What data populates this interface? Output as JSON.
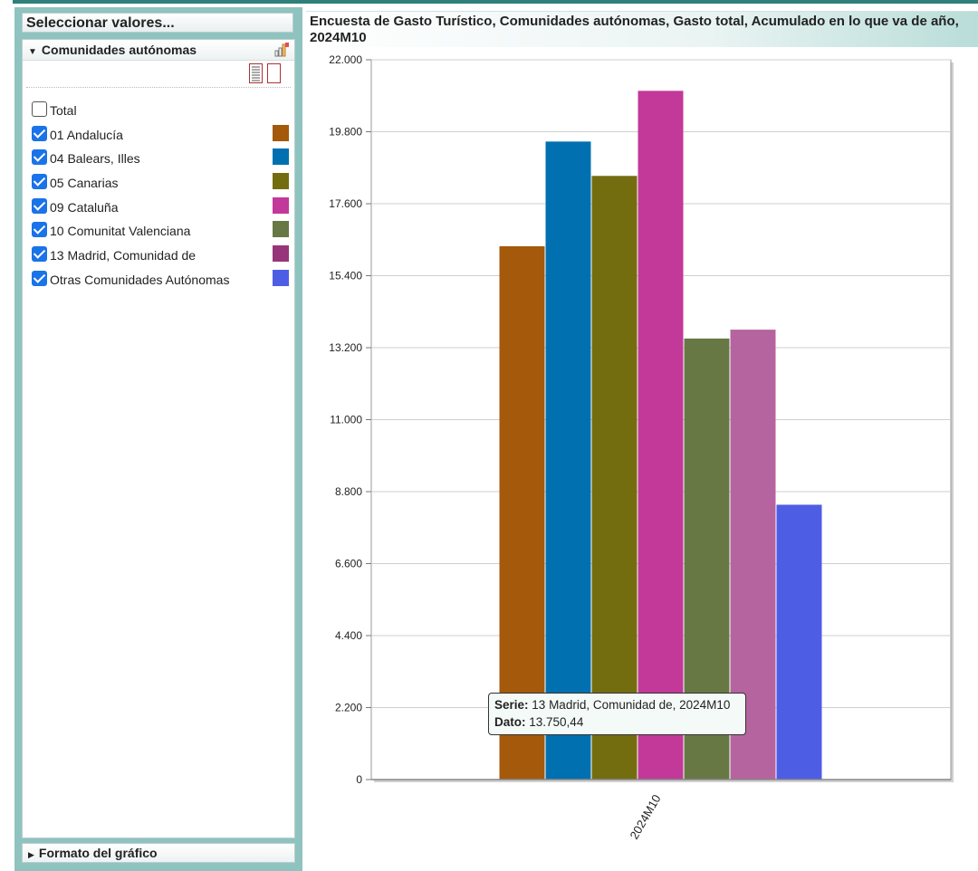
{
  "left": {
    "select_header": "Seleccionar valores...",
    "dimension_title": "Comunidades autónomas",
    "format_label": "Formato del gráfico",
    "options": [
      {
        "label": "Total",
        "checked": false,
        "color": null
      },
      {
        "label": "01 Andalucía",
        "checked": true,
        "color": "#A4590B"
      },
      {
        "label": "04 Balears, Illes",
        "checked": true,
        "color": "#0070B0"
      },
      {
        "label": "05 Canarias",
        "checked": true,
        "color": "#746D10"
      },
      {
        "label": "09 Cataluña",
        "checked": true,
        "color": "#C2399A"
      },
      {
        "label": "10 Comunitat Valenciana",
        "checked": true,
        "color": "#677845"
      },
      {
        "label": "13 Madrid, Comunidad de",
        "checked": true,
        "color": "#97357A"
      },
      {
        "label": "Otras Comunidades Autónomas",
        "checked": true,
        "color": "#4D5EE5"
      }
    ]
  },
  "chart": {
    "title": "Encuesta de Gasto Turístico, Comunidades autónomas, Gasto total, Acumulado en lo que va de año, 2024M10"
  },
  "tooltip": {
    "serie_label": "Serie:",
    "serie_value": "13 Madrid, Comunidad de, 2024M10",
    "dato_label": "Dato:",
    "dato_value": "13.750,44"
  },
  "chart_data": {
    "type": "bar",
    "categories": [
      "2024M10"
    ],
    "ylim": [
      0,
      22000
    ],
    "yticks": [
      0,
      2200,
      4400,
      6600,
      8800,
      11000,
      13200,
      15400,
      17600,
      19800,
      22000
    ],
    "ytick_labels": [
      "0",
      "2.200",
      "4.400",
      "6.600",
      "8.800",
      "11.000",
      "13.200",
      "15.400",
      "17.600",
      "19.800",
      "22.000"
    ],
    "grid": true,
    "series": [
      {
        "name": "01 Andalucía",
        "values": [
          16300
        ],
        "color": "#A4590B"
      },
      {
        "name": "04 Balears, Illes",
        "values": [
          19500
        ],
        "color": "#0070B0"
      },
      {
        "name": "05 Canarias",
        "values": [
          18450
        ],
        "color": "#746D10"
      },
      {
        "name": "09 Cataluña",
        "values": [
          21050
        ],
        "color": "#C2399A"
      },
      {
        "name": "10 Comunitat Valenciana",
        "values": [
          13480
        ],
        "color": "#677845"
      },
      {
        "name": "13 Madrid, Comunidad de",
        "values": [
          13750.44
        ],
        "color": "#B5649F"
      },
      {
        "name": "Otras Comunidades Autónomas",
        "values": [
          8400
        ],
        "color": "#4D5EE5"
      }
    ]
  }
}
